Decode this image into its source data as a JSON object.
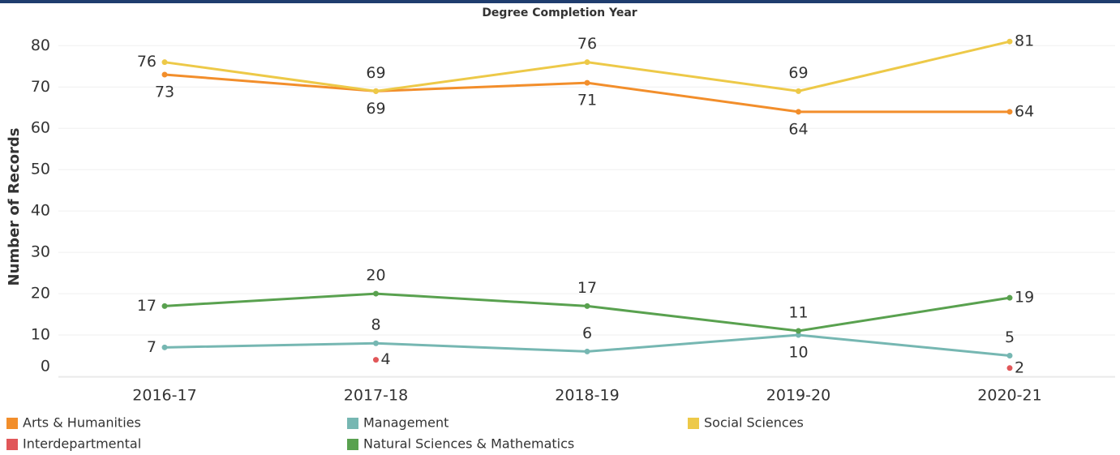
{
  "chart_data": {
    "type": "line",
    "title": "Degree Completion Year",
    "y_label": "Number of Records",
    "categories": [
      "2016-17",
      "2017-18",
      "2018-19",
      "2019-20",
      "2020-21"
    ],
    "series": [
      {
        "name": "Arts & Humanities",
        "color": "#f28e2b",
        "values": [
          73,
          69,
          71,
          64,
          64
        ]
      },
      {
        "name": "Management",
        "color": "#76b7b2",
        "values": [
          7,
          8,
          6,
          10,
          5
        ]
      },
      {
        "name": "Social Sciences",
        "color": "#edc948",
        "values": [
          76,
          69,
          76,
          69,
          81
        ]
      },
      {
        "name": "Interdepartmental",
        "color": "#e15759",
        "values": [
          null,
          4,
          null,
          null,
          2
        ]
      },
      {
        "name": "Natural Sciences & Mathematics",
        "color": "#59a14f",
        "values": [
          17,
          20,
          17,
          11,
          19
        ]
      }
    ],
    "ylim": [
      0,
      83
    ],
    "yticks": [
      0,
      10,
      20,
      30,
      40,
      50,
      60,
      70,
      80
    ],
    "grid": true
  }
}
